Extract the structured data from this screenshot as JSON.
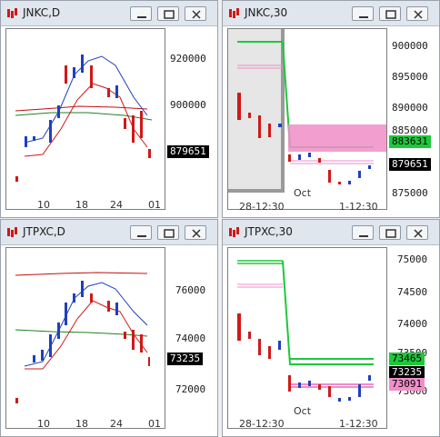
{
  "windows": {
    "jnkc_daily": {
      "title": "JNKC,D",
      "y_labels": [
        "920000",
        "900000"
      ],
      "x_labels": [
        "10",
        "18",
        "24",
        "01"
      ],
      "last_price": "879651"
    },
    "jnkc_30": {
      "title": "JNKC,30",
      "y_labels": [
        "900000",
        "895000",
        "890000",
        "885000",
        "875000"
      ],
      "x_labels": [
        "28-12:30",
        "Oct",
        "1-12:30"
      ],
      "upper_price": "883631",
      "last_price": "879651"
    },
    "jtpxc_daily": {
      "title": "JTPXC,D",
      "y_labels": [
        "76000",
        "74000",
        "72000"
      ],
      "x_labels": [
        "10",
        "18",
        "24",
        "01"
      ],
      "last_price": "73235"
    },
    "jtpxc_30": {
      "title": "JTPXC,30",
      "y_labels": [
        "75000",
        "74500",
        "74000",
        "73500",
        "73000"
      ],
      "x_labels": [
        "28-12:30",
        "Oct",
        "1-12:30"
      ],
      "upper_price": "73465",
      "last_price": "73235",
      "lower_price": "73091"
    }
  },
  "colors": {
    "up": "#1f3fbf",
    "down": "#d01818",
    "green_box": "#1ec83c",
    "pink_box": "#f08ec8",
    "last_box": "#000000"
  }
}
